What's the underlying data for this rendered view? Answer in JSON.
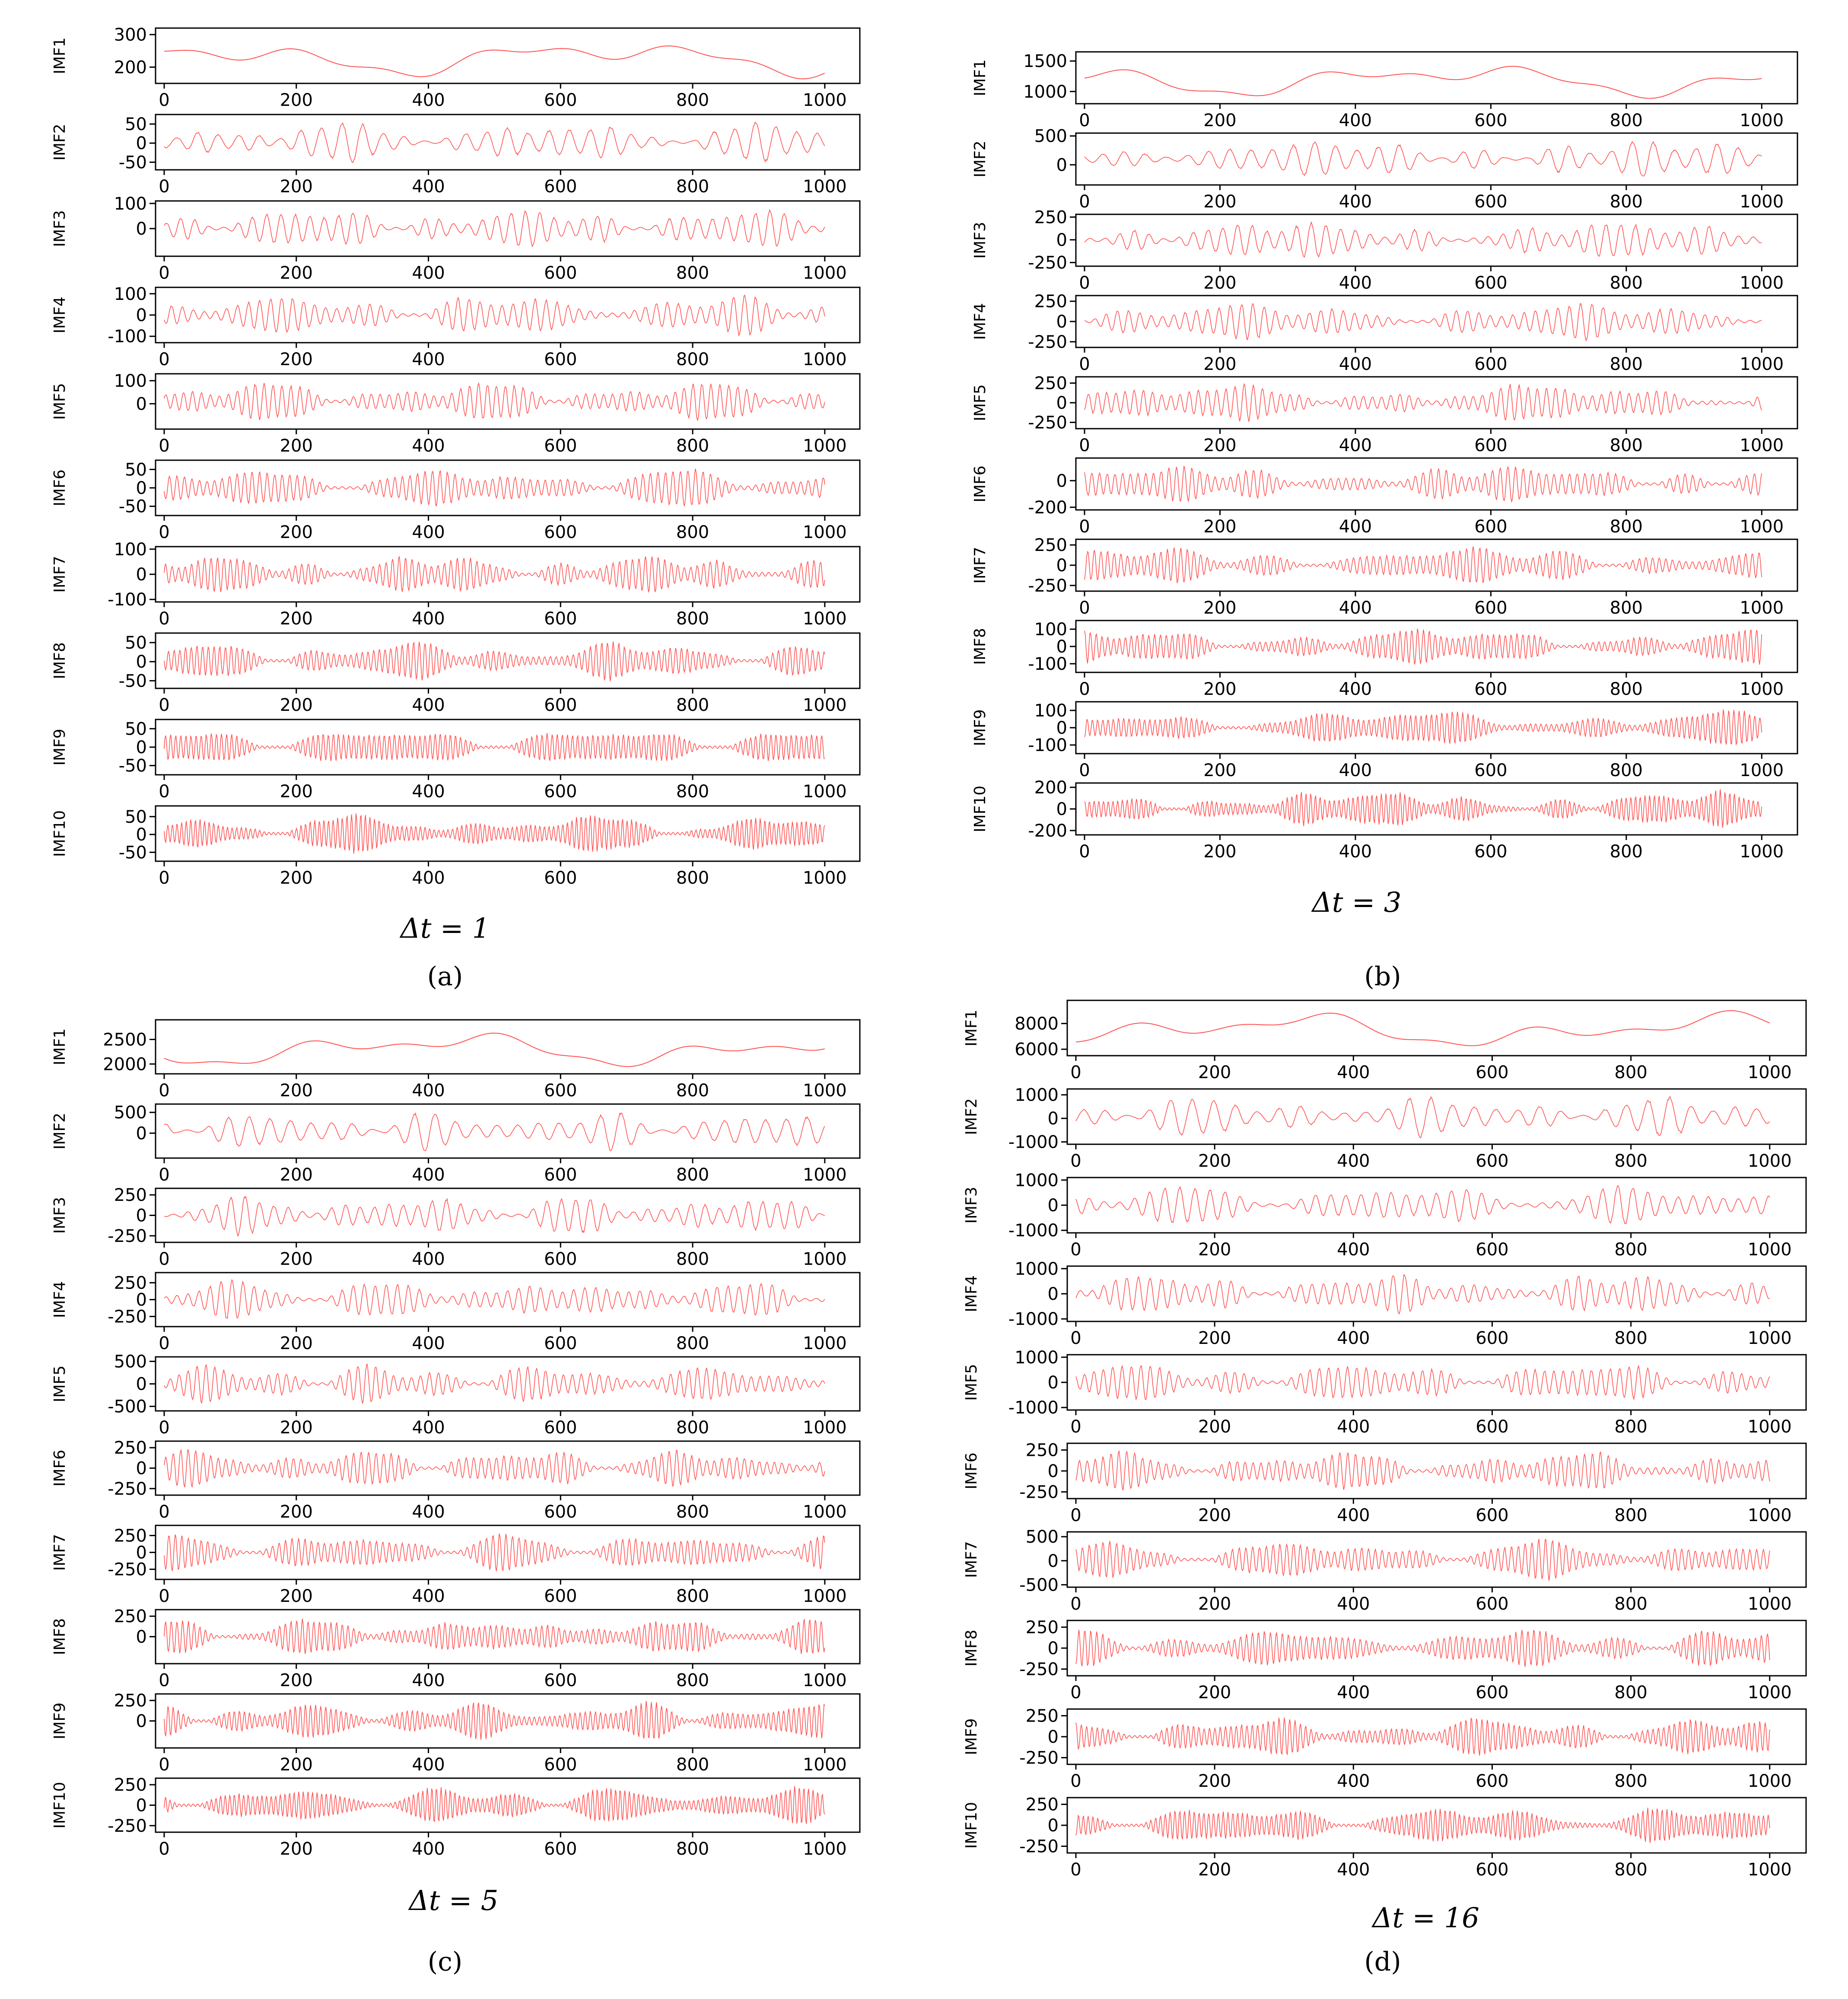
{
  "figure": {
    "panels": [
      {
        "dt_label": "Δt = 1",
        "sub_label": "(a)",
        "sub_letter": "a"
      },
      {
        "dt_label": "Δt = 3",
        "sub_label": "(b)",
        "sub_letter": "b"
      },
      {
        "dt_label": "Δt = 5",
        "sub_label": "(c)",
        "sub_letter": "c"
      },
      {
        "dt_label": "Δt = 16",
        "sub_label": "(d)",
        "sub_letter": "d"
      }
    ]
  },
  "chart_data": [
    {
      "type": "line",
      "panel": "a",
      "series_color": "#ff3333",
      "x_ticks": [
        0,
        200,
        400,
        600,
        800,
        1000
      ],
      "xlim": [
        0,
        1040
      ],
      "subplots": [
        {
          "ylabel": "IMF1",
          "ylim": [
            150,
            320
          ],
          "yticks": [
            200,
            300
          ]
        },
        {
          "ylabel": "IMF2",
          "ylim": [
            -70,
            75
          ],
          "yticks": [
            -50,
            0,
            50
          ]
        },
        {
          "ylabel": "IMF3",
          "ylim": [
            -110,
            110
          ],
          "yticks": [
            0,
            100
          ]
        },
        {
          "ylabel": "IMF4",
          "ylim": [
            -130,
            130
          ],
          "yticks": [
            -100,
            0,
            100
          ]
        },
        {
          "ylabel": "IMF5",
          "ylim": [
            -110,
            130
          ],
          "yticks": [
            0,
            100
          ]
        },
        {
          "ylabel": "IMF6",
          "ylim": [
            -75,
            75
          ],
          "yticks": [
            -50,
            0,
            50
          ]
        },
        {
          "ylabel": "IMF7",
          "ylim": [
            -110,
            110
          ],
          "yticks": [
            -100,
            0,
            100
          ]
        },
        {
          "ylabel": "IMF8",
          "ylim": [
            -70,
            75
          ],
          "yticks": [
            -50,
            0,
            50
          ]
        },
        {
          "ylabel": "IMF9",
          "ylim": [
            -75,
            75
          ],
          "yticks": [
            -50,
            0,
            50
          ]
        },
        {
          "ylabel": "IMF10",
          "ylim": [
            -75,
            80
          ],
          "yticks": [
            -50,
            0,
            50
          ]
        }
      ]
    },
    {
      "type": "line",
      "panel": "b",
      "series_color": "#ff3333",
      "x_ticks": [
        0,
        200,
        400,
        600,
        800,
        1000
      ],
      "xlim": [
        0,
        1040
      ],
      "subplots": [
        {
          "ylabel": "IMF1",
          "ylim": [
            800,
            1650
          ],
          "yticks": [
            1000,
            1500
          ]
        },
        {
          "ylabel": "IMF2",
          "ylim": [
            -350,
            550
          ],
          "yticks": [
            0,
            500
          ]
        },
        {
          "ylabel": "IMF3",
          "ylim": [
            -290,
            280
          ],
          "yticks": [
            -250,
            0,
            250
          ]
        },
        {
          "ylabel": "IMF4",
          "ylim": [
            -320,
            320
          ],
          "yticks": [
            -250,
            0,
            250
          ]
        },
        {
          "ylabel": "IMF5",
          "ylim": [
            -330,
            330
          ],
          "yticks": [
            -250,
            0,
            250
          ]
        },
        {
          "ylabel": "IMF6",
          "ylim": [
            -220,
            170
          ],
          "yticks": [
            -200,
            0
          ]
        },
        {
          "ylabel": "IMF7",
          "ylim": [
            -320,
            320
          ],
          "yticks": [
            -250,
            0,
            250
          ]
        },
        {
          "ylabel": "IMF8",
          "ylim": [
            -150,
            150
          ],
          "yticks": [
            -100,
            0,
            100
          ]
        },
        {
          "ylabel": "IMF9",
          "ylim": [
            -150,
            150
          ],
          "yticks": [
            -100,
            0,
            100
          ]
        },
        {
          "ylabel": "IMF10",
          "ylim": [
            -240,
            240
          ],
          "yticks": [
            -200,
            0,
            200
          ]
        }
      ]
    },
    {
      "type": "line",
      "panel": "c",
      "series_color": "#ff3333",
      "x_ticks": [
        0,
        200,
        400,
        600,
        800,
        1000
      ],
      "xlim": [
        0,
        1040
      ],
      "subplots": [
        {
          "ylabel": "IMF1",
          "ylim": [
            1800,
            2900
          ],
          "yticks": [
            2000,
            2500
          ]
        },
        {
          "ylabel": "IMF2",
          "ylim": [
            -600,
            700
          ],
          "yticks": [
            0,
            500
          ]
        },
        {
          "ylabel": "IMF3",
          "ylim": [
            -330,
            330
          ],
          "yticks": [
            -250,
            0,
            250
          ]
        },
        {
          "ylabel": "IMF4",
          "ylim": [
            -400,
            400
          ],
          "yticks": [
            -250,
            0,
            250
          ]
        },
        {
          "ylabel": "IMF5",
          "ylim": [
            -600,
            600
          ],
          "yticks": [
            -500,
            0,
            500
          ]
        },
        {
          "ylabel": "IMF6",
          "ylim": [
            -330,
            330
          ],
          "yticks": [
            -250,
            0,
            250
          ]
        },
        {
          "ylabel": "IMF7",
          "ylim": [
            -400,
            400
          ],
          "yticks": [
            -250,
            0,
            250
          ]
        },
        {
          "ylabel": "IMF8",
          "ylim": [
            -330,
            330
          ],
          "yticks": [
            0,
            250
          ]
        },
        {
          "ylabel": "IMF9",
          "ylim": [
            -330,
            330
          ],
          "yticks": [
            0,
            250
          ]
        },
        {
          "ylabel": "IMF10",
          "ylim": [
            -330,
            330
          ],
          "yticks": [
            -250,
            0,
            250
          ]
        }
      ]
    },
    {
      "type": "line",
      "panel": "d",
      "series_color": "#ff3333",
      "x_ticks": [
        0,
        200,
        400,
        600,
        800,
        1000
      ],
      "xlim": [
        0,
        1040
      ],
      "subplots": [
        {
          "ylabel": "IMF1",
          "ylim": [
            5500,
            9800
          ],
          "yticks": [
            6000,
            8000
          ]
        },
        {
          "ylabel": "IMF2",
          "ylim": [
            -1100,
            1250
          ],
          "yticks": [
            -1000,
            0,
            1000
          ]
        },
        {
          "ylabel": "IMF3",
          "ylim": [
            -1100,
            1100
          ],
          "yticks": [
            -1000,
            0,
            1000
          ]
        },
        {
          "ylabel": "IMF4",
          "ylim": [
            -1100,
            1100
          ],
          "yticks": [
            -1000,
            0,
            1000
          ]
        },
        {
          "ylabel": "IMF5",
          "ylim": [
            -1100,
            1100
          ],
          "yticks": [
            -1000,
            0,
            1000
          ]
        },
        {
          "ylabel": "IMF6",
          "ylim": [
            -330,
            330
          ],
          "yticks": [
            -250,
            0,
            250
          ]
        },
        {
          "ylabel": "IMF7",
          "ylim": [
            -550,
            600
          ],
          "yticks": [
            -500,
            0,
            500
          ]
        },
        {
          "ylabel": "IMF8",
          "ylim": [
            -330,
            330
          ],
          "yticks": [
            -250,
            0,
            250
          ]
        },
        {
          "ylabel": "IMF9",
          "ylim": [
            -330,
            330
          ],
          "yticks": [
            -250,
            0,
            250
          ]
        },
        {
          "ylabel": "IMF10",
          "ylim": [
            -330,
            330
          ],
          "yticks": [
            -250,
            0,
            250
          ]
        }
      ]
    }
  ]
}
